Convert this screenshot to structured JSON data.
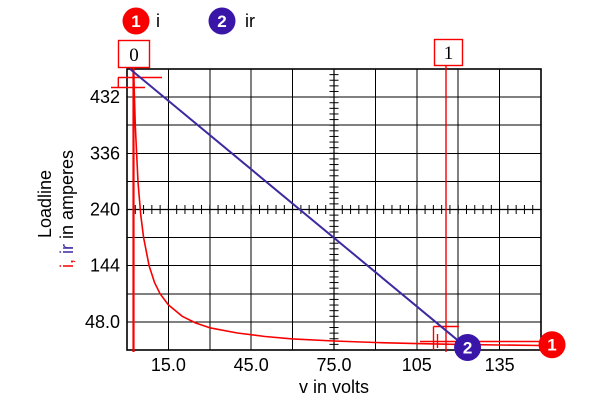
{
  "legend": {
    "items": [
      {
        "num": "1",
        "label": "i",
        "color": "#F80000"
      },
      {
        "num": "2",
        "label": "ir",
        "color": "#3A16A8"
      }
    ]
  },
  "cursors": {
    "left_label": "0",
    "right_label": "1",
    "color": "#F80000"
  },
  "axes": {
    "x_title": "v in volts",
    "y_title_line1": "Loadline",
    "y_title_line2": {
      "part_i": "i,",
      "part_ir": " ir",
      "part_rest": " in amperes"
    }
  },
  "chart_data": {
    "type": "line",
    "title": "Loadline",
    "xlabel": "v in volts",
    "ylabel": "i, ir in amperes",
    "xlim": [
      0,
      150
    ],
    "ylim": [
      0,
      480
    ],
    "x_gridline_step": 15,
    "y_gridline_step": 48,
    "grid": "on",
    "legend_position": "top",
    "center_axes": {
      "x_at": 75,
      "y_at": 240,
      "minor_ticks_per_major": 5
    },
    "x_tick_labels": [
      {
        "v": 15,
        "label": "15.0"
      },
      {
        "v": 45,
        "label": "45.0"
      },
      {
        "v": 75,
        "label": "75.0"
      },
      {
        "v": 105,
        "label": "105"
      },
      {
        "v": 135,
        "label": "135"
      }
    ],
    "y_tick_labels": [
      {
        "v": 48,
        "label": "48.0"
      },
      {
        "v": 144,
        "label": "144"
      },
      {
        "v": 240,
        "label": "240"
      },
      {
        "v": 336,
        "label": "336"
      },
      {
        "v": 432,
        "label": "432"
      }
    ],
    "series": [
      {
        "name": "i",
        "color": "#F80000",
        "width": 1.6,
        "x": [
          2.4,
          3,
          4,
          5,
          6,
          8,
          10,
          12,
          15,
          20,
          25,
          30,
          40,
          50,
          60,
          75,
          90,
          105,
          120,
          135,
          150
        ],
        "y": [
          480,
          383,
          287,
          230,
          192,
          144,
          115,
          96,
          77,
          57.5,
          46,
          38,
          29,
          23,
          19,
          15.3,
          12.8,
          11,
          9.6,
          8.5,
          7.7
        ]
      },
      {
        "name": "ir",
        "color": "#3C2AA0",
        "width": 2,
        "x": [
          1.1,
          123.3
        ],
        "y": [
          480,
          3
        ]
      }
    ],
    "markers": [
      {
        "label": "2",
        "series": "ir",
        "x": 123.4,
        "y": 4.3,
        "fill": "#3A16A8"
      },
      {
        "label": "1",
        "series": "i",
        "x": 154,
        "y": 9,
        "fill": "#F80000"
      }
    ]
  }
}
